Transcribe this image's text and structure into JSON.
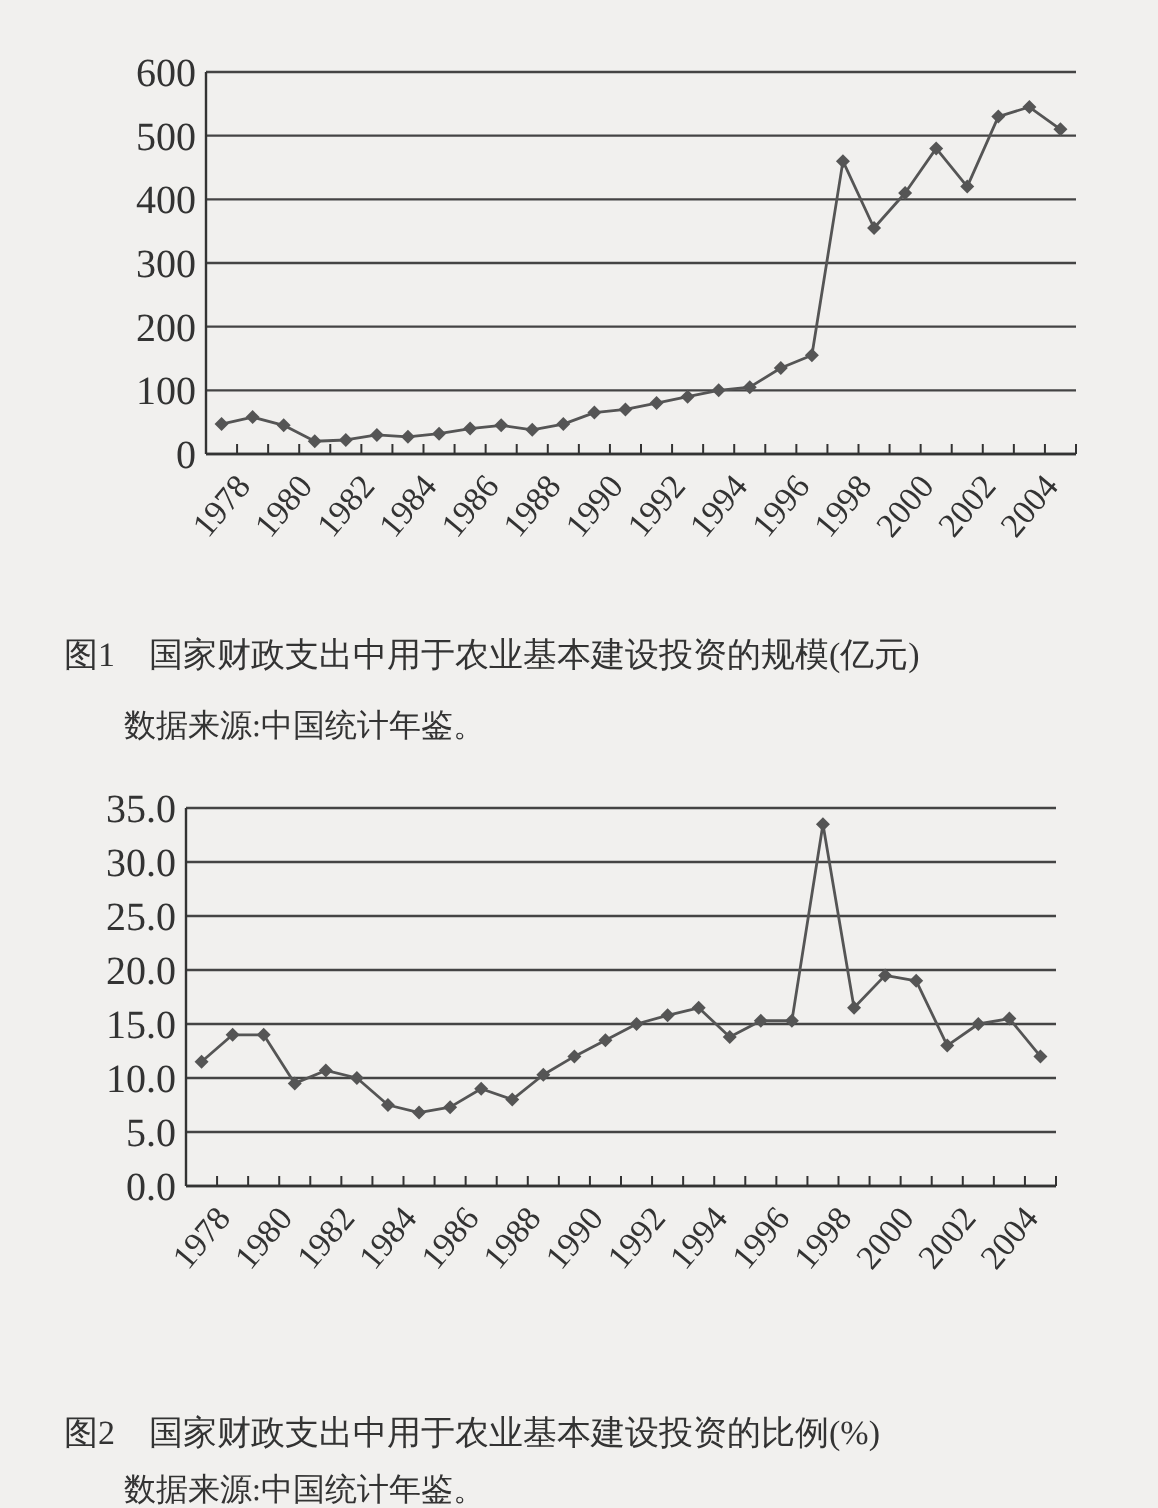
{
  "chart_data": [
    {
      "type": "line",
      "title": "图1　国家财政支出中用于农业基本建设投资的规模(亿元)",
      "annotations": [
        "数据来源:中国统计年鉴。"
      ],
      "categories": [
        "1978",
        null,
        "1980",
        null,
        "1982",
        null,
        "1984",
        null,
        "1986",
        null,
        "1988",
        null,
        "1990",
        null,
        "1992",
        null,
        "1994",
        null,
        "1996",
        null,
        "1998",
        null,
        "2000",
        null,
        "2002",
        null,
        "2004",
        null
      ],
      "series": [
        {
          "color": "#555555",
          "values": [
            47,
            58,
            45,
            20,
            22,
            30,
            27,
            32,
            40,
            45,
            38,
            47,
            65,
            70,
            80,
            90,
            100,
            105,
            135,
            155,
            460,
            355,
            410,
            480,
            420,
            530,
            545,
            510
          ]
        }
      ],
      "ylim": [
        0,
        600
      ],
      "yticks": [
        0,
        100,
        200,
        300,
        400,
        500,
        600
      ],
      "grid": "y",
      "marker": "diamond",
      "line_style": "solid"
    },
    {
      "type": "line",
      "title": "图2　国家财政支出中用于农业基本建设投资的比例(%)",
      "annotations": [
        "数据来源:中国统计年鉴。"
      ],
      "categories": [
        "1978",
        null,
        "1980",
        null,
        "1982",
        null,
        "1984",
        null,
        "1986",
        null,
        "1988",
        null,
        "1990",
        null,
        "1992",
        null,
        "1994",
        null,
        "1996",
        null,
        "1998",
        null,
        "2000",
        null,
        "2002",
        null,
        "2004",
        null
      ],
      "series": [
        {
          "color": "#555555",
          "values": [
            11.5,
            14,
            14,
            9.5,
            10.7,
            10,
            7.5,
            6.8,
            7.3,
            9,
            8,
            10.3,
            12,
            13.5,
            15,
            15.8,
            16.5,
            13.8,
            15.3,
            15.3,
            33.5,
            16.5,
            19.5,
            19,
            13,
            15,
            15.5,
            12
          ]
        }
      ],
      "ylim": [
        0,
        35
      ],
      "yticks": [
        {
          "value": 0,
          "label": "0.0"
        },
        {
          "value": 5,
          "label": "5.0"
        },
        {
          "value": 10,
          "label": "10.0"
        },
        {
          "value": 15,
          "label": "15.0"
        },
        {
          "value": 20,
          "label": "20.0"
        },
        {
          "value": 25,
          "label": "25.0"
        },
        {
          "value": 30,
          "label": "30.0"
        },
        {
          "value": 35,
          "label": "35.0"
        }
      ],
      "grid": "y",
      "marker": "diamond",
      "line_style": "solid"
    }
  ]
}
